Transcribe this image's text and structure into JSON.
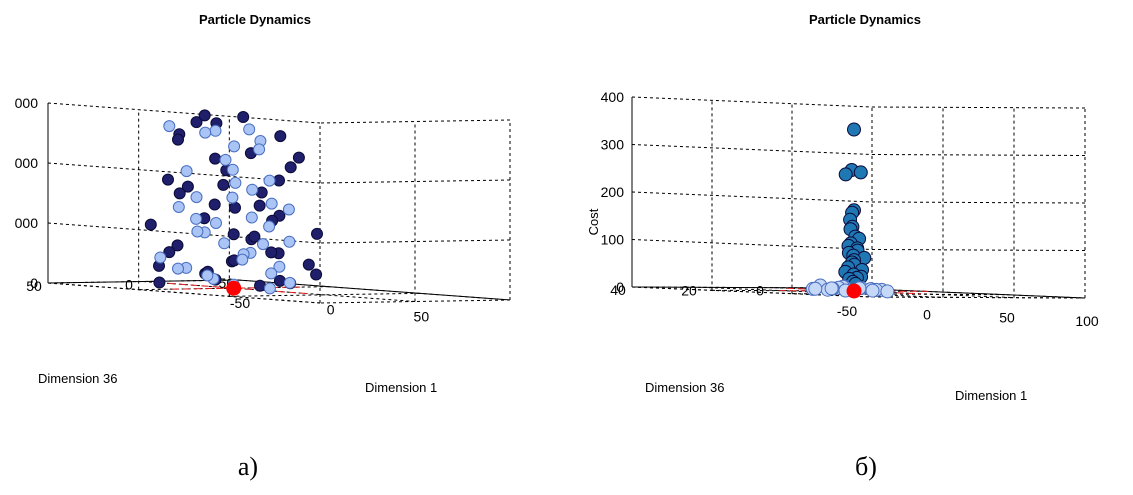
{
  "figure": {
    "panels": [
      {
        "caption": "а)"
      },
      {
        "caption": "б)"
      }
    ]
  },
  "chart_data": [
    {
      "type": "scatter",
      "title": "Particle Dynamics",
      "xlabel": "Dimension 1",
      "ylabel": "Dimension 36",
      "zlabel": "",
      "x_ticks": [
        "-50",
        "0",
        "50"
      ],
      "y_ticks": [
        "-50",
        "0",
        "50"
      ],
      "z_ticks": [
        "0",
        "000",
        "000",
        "000"
      ],
      "xlim": [
        -50,
        100
      ],
      "ylim": [
        -50,
        50
      ],
      "zlim": [
        0,
        3000
      ],
      "grid": true,
      "series": [
        {
          "color": "#1f1f6b",
          "marker": "circle",
          "points": [
            [
              -20,
              -10,
              2700
            ],
            [
              0,
              -5,
              2850
            ],
            [
              -10,
              10,
              2750
            ],
            [
              5,
              20,
              2900
            ],
            [
              10,
              -15,
              2550
            ],
            [
              -30,
              0,
              2500
            ],
            [
              -15,
              15,
              2450
            ],
            [
              20,
              10,
              2300
            ],
            [
              15,
              -20,
              2200
            ],
            [
              -5,
              5,
              2150
            ],
            [
              0,
              -30,
              2000
            ],
            [
              -25,
              -20,
              1900
            ],
            [
              25,
              0,
              1850
            ],
            [
              -10,
              25,
              1800
            ],
            [
              10,
              15,
              1750
            ],
            [
              -20,
              5,
              1650
            ],
            [
              5,
              -10,
              1600
            ],
            [
              -35,
              -5,
              1500
            ],
            [
              30,
              15,
              1450
            ],
            [
              0,
              10,
              1400
            ],
            [
              -15,
              -15,
              1300
            ],
            [
              20,
              -5,
              1250
            ],
            [
              10,
              25,
              1200
            ],
            [
              -5,
              -25,
              1100
            ],
            [
              -30,
              15,
              1000
            ],
            [
              25,
              -20,
              950
            ],
            [
              0,
              0,
              900
            ],
            [
              15,
              5,
              850
            ],
            [
              -20,
              -30,
              800
            ],
            [
              -10,
              20,
              700
            ],
            [
              30,
              5,
              650
            ],
            [
              5,
              -15,
              600
            ],
            [
              -25,
              10,
              550
            ],
            [
              20,
              20,
              500
            ],
            [
              -5,
              -5,
              450
            ],
            [
              10,
              -30,
              400
            ],
            [
              -15,
              25,
              350
            ],
            [
              35,
              -10,
              300
            ],
            [
              0,
              15,
              250
            ],
            [
              -30,
              -15,
              200
            ],
            [
              15,
              -10,
              150
            ],
            [
              -10,
              0,
              120
            ],
            [
              25,
              10,
              100
            ],
            [
              5,
              -25,
              80
            ],
            [
              -20,
              20,
              60
            ]
          ]
        },
        {
          "color": "#aac4f5",
          "marker": "circle",
          "points": [
            [
              -25,
              10,
              2650
            ],
            [
              -10,
              0,
              2600
            ],
            [
              0,
              15,
              2600
            ],
            [
              40,
              30,
              2750
            ],
            [
              20,
              5,
              2500
            ],
            [
              -5,
              -5,
              2350
            ],
            [
              35,
              20,
              2400
            ],
            [
              -15,
              -10,
              2100
            ],
            [
              10,
              10,
              2000
            ],
            [
              -5,
              20,
              1950
            ],
            [
              25,
              5,
              1850
            ],
            [
              -20,
              -20,
              1700
            ],
            [
              5,
              -5,
              1650
            ],
            [
              15,
              15,
              1550
            ],
            [
              -10,
              10,
              1500
            ],
            [
              0,
              -20,
              1400
            ],
            [
              20,
              -10,
              1350
            ],
            [
              -25,
              5,
              1300
            ],
            [
              10,
              0,
              1200
            ],
            [
              -5,
              15,
              1150
            ],
            [
              30,
              10,
              1100
            ],
            [
              -15,
              -5,
              1050
            ],
            [
              5,
              20,
              950
            ],
            [
              -20,
              0,
              900
            ],
            [
              15,
              -15,
              800
            ],
            [
              0,
              5,
              750
            ],
            [
              -10,
              -25,
              700
            ],
            [
              25,
              15,
              650
            ],
            [
              -5,
              -10,
              550
            ],
            [
              10,
              5,
              500
            ],
            [
              -30,
              10,
              450
            ],
            [
              20,
              -5,
              400
            ],
            [
              0,
              25,
              350
            ],
            [
              -15,
              15,
              300
            ],
            [
              5,
              -15,
              250
            ],
            [
              15,
              25,
              200
            ],
            [
              -25,
              -10,
              150
            ],
            [
              10,
              -20,
              100
            ],
            [
              0,
              0,
              60
            ],
            [
              20,
              0,
              40
            ]
          ]
        },
        {
          "color": "#ff0000",
          "marker": "circle",
          "name": "",
          "points": [
            [
              0,
              0,
              0
            ]
          ]
        }
      ]
    },
    {
      "type": "scatter",
      "title": "Particle Dynamics",
      "xlabel": "Dimension 1",
      "ylabel": "Dimension 36",
      "zlabel": "Cost",
      "x_ticks": [
        "-50",
        "0",
        "50",
        "100"
      ],
      "y_ticks": [
        "-20",
        "0",
        "20",
        "40"
      ],
      "z_ticks": [
        "0",
        "100",
        "200",
        "300",
        "400"
      ],
      "xlim": [
        -50,
        100
      ],
      "ylim": [
        -20,
        40
      ],
      "zlim": [
        0,
        400
      ],
      "grid": true,
      "series": [
        {
          "color": "#1f77b4",
          "marker": "circle",
          "points": [
            [
              0,
              0,
              340
            ],
            [
              3,
              2,
              255
            ],
            [
              2,
              -1,
              250
            ],
            [
              -3,
              1,
              245
            ],
            [
              0,
              0,
              170
            ],
            [
              1,
              1,
              165
            ],
            [
              2,
              2,
              150
            ],
            [
              -1,
              0,
              135
            ],
            [
              0,
              1,
              130
            ],
            [
              3,
              1,
              115
            ],
            [
              1,
              -1,
              110
            ],
            [
              -2,
              0,
              100
            ],
            [
              1,
              2,
              95
            ],
            [
              2,
              0,
              90
            ],
            [
              0,
              -1,
              85
            ],
            [
              -1,
              1,
              80
            ],
            [
              4,
              2,
              75
            ],
            [
              2,
              -2,
              70
            ],
            [
              0,
              0,
              65
            ],
            [
              1,
              1,
              60
            ],
            [
              -2,
              -1,
              55
            ],
            [
              3,
              3,
              50
            ],
            [
              5,
              0,
              45
            ],
            [
              -1,
              2,
              40
            ],
            [
              2,
              1,
              35
            ],
            [
              0,
              -2,
              30
            ],
            [
              4,
              1,
              28
            ],
            [
              -3,
              0,
              25
            ],
            [
              6,
              3,
              20
            ],
            [
              1,
              0,
              15
            ]
          ]
        },
        {
          "color": "#c6d8f7",
          "marker": "circle",
          "points": [
            [
              -10,
              5,
              10
            ],
            [
              -6,
              0,
              8
            ],
            [
              -2,
              -3,
              6
            ],
            [
              2,
              4,
              9
            ],
            [
              6,
              -2,
              5
            ],
            [
              10,
              3,
              7
            ],
            [
              14,
              0,
              4
            ],
            [
              -14,
              -2,
              5
            ],
            [
              -8,
              8,
              3
            ],
            [
              4,
              -6,
              3
            ],
            [
              0,
              6,
              5
            ],
            [
              8,
              6,
              2
            ],
            [
              -4,
              -8,
              2
            ],
            [
              12,
              -4,
              1
            ],
            [
              -12,
              2,
              1
            ],
            [
              16,
              2,
              3
            ],
            [
              -2,
              10,
              4
            ],
            [
              6,
              9,
              6
            ]
          ]
        },
        {
          "color": "#ff0000",
          "marker": "circle",
          "name": "",
          "points": [
            [
              0,
              0,
              0
            ]
          ]
        }
      ]
    }
  ]
}
